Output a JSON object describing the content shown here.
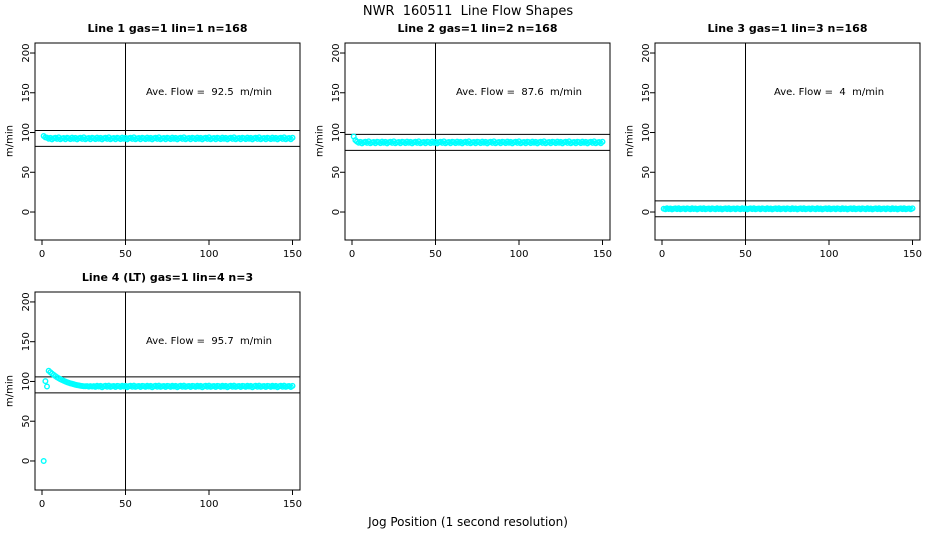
{
  "title": "NWR  160511  Line Flow Shapes",
  "xlabel": "Jog Position (1 second resolution)",
  "point_color": "#00FFFF",
  "axis_color": "#000000",
  "chart_data": [
    {
      "type": "scatter",
      "title": "Line 1 gas=1 lin=1 n=168",
      "annotation": "Ave. Flow =  92.5  m/min",
      "ylabel": "m/min",
      "x_ticks": [
        0,
        50,
        100,
        150
      ],
      "y_ticks": [
        0,
        50,
        100,
        150,
        200
      ],
      "xlim": [
        -4.2,
        154.5
      ],
      "ylim": [
        -35.2,
        212.6
      ],
      "vline": 50,
      "hlines": [
        102.5,
        82.5
      ],
      "x_start": 1,
      "x_step": 1,
      "y": [
        95.6,
        93.8,
        93.6,
        92.2,
        93.2,
        91.3,
        92.7,
        93.4,
        92.0,
        93.8,
        91.6,
        92.6,
        93.1,
        91.5,
        93.3,
        92.9,
        91.7,
        93.6,
        92.2,
        93.2,
        91.3,
        92.7,
        93.4,
        92.0,
        93.8,
        91.6,
        92.6,
        93.1,
        91.5,
        93.3,
        92.9,
        91.7,
        93.6,
        92.2,
        93.2,
        91.3,
        92.7,
        93.4,
        92.0,
        93.8,
        91.6,
        92.6,
        93.1,
        91.5,
        93.3,
        92.9,
        91.7,
        93.6,
        92.2,
        93.2,
        91.3,
        92.7,
        93.4,
        92.0,
        93.8,
        91.6,
        92.6,
        93.1,
        91.5,
        93.3,
        92.9,
        91.7,
        93.6,
        92.2,
        93.2,
        91.3,
        92.7,
        93.4,
        92.0,
        93.8,
        91.6,
        92.6,
        93.1,
        91.5,
        93.3,
        92.9,
        91.7,
        93.6,
        92.2,
        93.2,
        91.3,
        92.7,
        93.4,
        92.0,
        93.8,
        91.6,
        92.6,
        93.1,
        91.5,
        93.3,
        92.9,
        91.7,
        93.6,
        92.2,
        93.2,
        91.3,
        92.7,
        93.4,
        92.0,
        93.8,
        91.6,
        92.6,
        93.1,
        91.5,
        93.3,
        92.9,
        91.7,
        93.6,
        92.2,
        93.2,
        91.3,
        92.7,
        93.4,
        92.0,
        93.8,
        91.6,
        92.6,
        93.1,
        91.5,
        93.3,
        92.9,
        91.7,
        93.6,
        92.2,
        93.2,
        91.3,
        92.7,
        93.4,
        92.0,
        93.8,
        91.6,
        92.6,
        93.1,
        91.5,
        93.3,
        92.9,
        91.7,
        93.6,
        92.2,
        93.2,
        91.3,
        92.7,
        93.4,
        92.0,
        93.8,
        91.6,
        92.6,
        93.1,
        91.5,
        93.3
      ]
    },
    {
      "type": "scatter",
      "title": "Line 2 gas=1 lin=2 n=168",
      "annotation": "Ave. Flow =  87.6  m/min",
      "ylabel": "m/min",
      "x_ticks": [
        0,
        50,
        100,
        150
      ],
      "y_ticks": [
        0,
        50,
        100,
        150,
        200
      ],
      "xlim": [
        -4.2,
        154.5
      ],
      "ylim": [
        -35.2,
        212.6
      ],
      "vline": 50,
      "hlines": [
        97.6,
        77.6
      ],
      "x_start": 1,
      "x_step": 1,
      "y": [
        95.0,
        90.5,
        88.6,
        87.2,
        88.2,
        86.3,
        87.7,
        88.4,
        87.0,
        88.8,
        86.6,
        87.6,
        88.1,
        86.5,
        88.3,
        87.9,
        86.7,
        88.6,
        87.2,
        88.2,
        86.3,
        87.7,
        88.4,
        87.0,
        88.8,
        86.6,
        87.6,
        88.1,
        86.5,
        88.3,
        87.9,
        86.7,
        88.6,
        87.2,
        88.2,
        86.3,
        87.7,
        88.4,
        87.0,
        88.8,
        86.6,
        87.6,
        88.1,
        86.5,
        88.3,
        87.9,
        86.7,
        88.6,
        87.2,
        88.2,
        86.3,
        87.7,
        88.4,
        87.0,
        88.8,
        86.6,
        87.6,
        88.1,
        86.5,
        88.3,
        87.9,
        86.7,
        88.6,
        87.2,
        88.2,
        86.3,
        87.7,
        88.4,
        87.0,
        88.8,
        86.6,
        87.6,
        88.1,
        86.5,
        88.3,
        87.9,
        86.7,
        88.6,
        87.2,
        88.2,
        86.3,
        87.7,
        88.4,
        87.0,
        88.8,
        86.6,
        87.6,
        88.1,
        86.5,
        88.3,
        87.9,
        86.7,
        88.6,
        87.2,
        88.2,
        86.3,
        87.7,
        88.4,
        87.0,
        88.8,
        86.6,
        87.6,
        88.1,
        86.5,
        88.3,
        87.9,
        86.7,
        88.6,
        87.2,
        88.2,
        86.3,
        87.7,
        88.4,
        87.0,
        88.8,
        86.6,
        87.6,
        88.1,
        86.5,
        88.3,
        87.9,
        86.7,
        88.6,
        87.2,
        88.2,
        86.3,
        87.7,
        88.4,
        87.0,
        88.8,
        86.6,
        87.6,
        88.1,
        86.5,
        88.3,
        87.9,
        86.7,
        88.6,
        87.2,
        88.2,
        86.3,
        87.7,
        88.4,
        87.0,
        88.8,
        86.6,
        87.6,
        88.1,
        86.5,
        88.3
      ]
    },
    {
      "type": "scatter",
      "title": "Line 3 gas=1 lin=3 n=168",
      "annotation": "Ave. Flow =  4  m/min",
      "ylabel": "m/min",
      "x_ticks": [
        0,
        50,
        100,
        150
      ],
      "y_ticks": [
        0,
        50,
        100,
        150,
        200
      ],
      "xlim": [
        -4.2,
        154.5
      ],
      "ylim": [
        -35.2,
        212.6
      ],
      "vline": 50,
      "hlines": [
        14,
        -6
      ],
      "x_start": 1,
      "x_step": 1,
      "y": [
        4.2,
        3.5,
        4.7,
        3.8,
        4.4,
        3.3,
        4.1,
        4.5,
        3.7,
        4.8,
        3.5,
        4.1,
        4.4,
        3.4,
        4.5,
        4.2,
        3.5,
        4.7,
        3.8,
        4.4,
        3.3,
        4.1,
        4.5,
        3.7,
        4.8,
        3.5,
        4.1,
        4.4,
        3.4,
        4.5,
        4.2,
        3.5,
        4.7,
        3.8,
        4.4,
        3.3,
        4.1,
        4.5,
        3.7,
        4.8,
        3.5,
        4.1,
        4.4,
        3.4,
        4.5,
        4.2,
        3.5,
        4.7,
        3.8,
        4.4,
        3.3,
        4.1,
        4.5,
        3.7,
        4.8,
        3.5,
        4.1,
        4.4,
        3.4,
        4.5,
        4.2,
        3.5,
        4.7,
        3.8,
        4.4,
        3.3,
        4.1,
        4.5,
        3.7,
        4.8,
        3.5,
        4.1,
        4.4,
        3.4,
        4.5,
        4.2,
        3.5,
        4.7,
        3.8,
        4.4,
        3.3,
        4.1,
        4.5,
        3.7,
        4.8,
        3.5,
        4.1,
        4.4,
        3.4,
        4.5,
        4.2,
        3.5,
        4.7,
        3.8,
        4.4,
        3.3,
        4.1,
        4.5,
        3.7,
        4.8,
        3.5,
        4.1,
        4.4,
        3.4,
        4.5,
        4.2,
        3.5,
        4.7,
        3.8,
        4.4,
        3.3,
        4.1,
        4.5,
        3.7,
        4.8,
        3.5,
        4.1,
        4.4,
        3.4,
        4.5,
        4.2,
        3.5,
        4.7,
        3.8,
        4.4,
        3.3,
        4.1,
        4.5,
        3.7,
        4.8,
        3.5,
        4.1,
        4.4,
        3.4,
        4.5,
        4.2,
        3.5,
        4.7,
        3.8,
        4.4,
        3.3,
        4.1,
        4.5,
        3.7,
        4.8,
        3.5,
        4.1,
        4.4,
        3.4,
        4.5
      ]
    },
    {
      "type": "scatter",
      "title": "Line 4 (LT) gas=1 lin=4 n=3",
      "annotation": "Ave. Flow =  95.7  m/min",
      "ylabel": "m/min",
      "x_ticks": [
        0,
        50,
        100,
        150
      ],
      "y_ticks": [
        0,
        50,
        100,
        150,
        200
      ],
      "xlim": [
        -4.2,
        154.5
      ],
      "ylim": [
        -36.5,
        212.5
      ],
      "vline": 50,
      "hlines": [
        105.7,
        85.7
      ],
      "x_start": 1,
      "x_step": 1,
      "y": [
        0,
        100.5,
        93.6,
        113.5,
        111.6,
        109.9,
        108.2,
        106.7,
        105.3,
        104.1,
        102.9,
        101.8,
        100.8,
        99.9,
        99.1,
        98.3,
        97.6,
        97.0,
        96.4,
        95.9,
        95.4,
        95.0,
        94.6,
        94.3,
        94.0,
        93.9,
        94.1,
        93.5,
        94.2,
        93.7,
        94.1,
        93.2,
        94.7,
        93.6,
        94.4,
        92.8,
        94.0,
        94.5,
        93.4,
        94.8,
        93.1,
        93.9,
        94.3,
        93.0,
        94.4,
        94.1,
        93.2,
        94.7,
        93.6,
        94.4,
        92.8,
        94.0,
        94.5,
        93.4,
        94.8,
        93.1,
        93.9,
        94.3,
        93.0,
        94.4,
        94.1,
        93.2,
        94.7,
        93.6,
        94.4,
        92.8,
        94.0,
        94.5,
        93.4,
        94.8,
        93.1,
        93.9,
        94.3,
        93.0,
        94.4,
        94.1,
        93.2,
        94.7,
        93.6,
        94.4,
        92.8,
        94.0,
        94.5,
        93.4,
        94.8,
        93.1,
        93.9,
        94.3,
        93.0,
        94.4,
        94.1,
        93.2,
        94.7,
        93.6,
        94.4,
        92.8,
        94.0,
        94.5,
        93.4,
        94.8,
        93.1,
        93.9,
        94.3,
        93.0,
        94.4,
        94.1,
        93.2,
        94.7,
        93.6,
        94.4,
        92.8,
        94.0,
        94.5,
        93.4,
        94.8,
        93.1,
        93.9,
        94.3,
        93.0,
        94.4,
        94.1,
        93.2,
        94.7,
        93.6,
        94.4,
        92.8,
        94.0,
        94.5,
        93.4,
        94.8,
        93.1,
        93.9,
        94.3,
        93.0,
        94.4,
        94.1,
        93.2,
        94.7,
        93.6,
        94.4,
        92.8,
        94.0,
        94.5,
        93.4,
        94.8,
        93.1,
        93.9,
        94.3,
        93.0,
        94.4
      ]
    }
  ]
}
